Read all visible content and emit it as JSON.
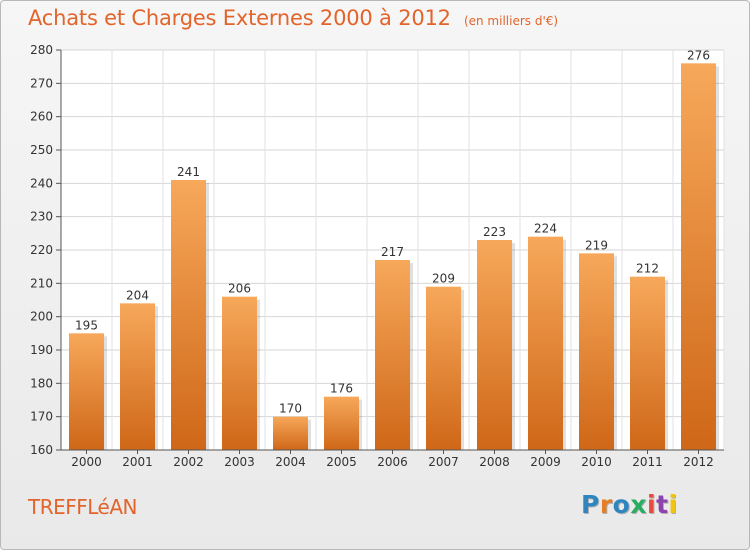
{
  "header": {
    "title": "Achats et Charges Externes 2000 à 2012",
    "subtitle": "(en milliers d'€)"
  },
  "footer": {
    "place": "TREFFLéAN",
    "logo_text": "Proxiti",
    "logo_colors": [
      "#2e86c1",
      "#e67e22",
      "#2e86c1",
      "#27ae60",
      "#e74c3c",
      "#8e44ad",
      "#f1c40f"
    ]
  },
  "chart_data": {
    "type": "bar",
    "categories": [
      "2000",
      "2001",
      "2002",
      "2003",
      "2004",
      "2005",
      "2006",
      "2007",
      "2008",
      "2009",
      "2010",
      "2011",
      "2012"
    ],
    "values": [
      195,
      204,
      241,
      206,
      170,
      176,
      217,
      209,
      223,
      224,
      219,
      212,
      276
    ],
    "ylim": [
      160,
      280
    ],
    "yticks": [
      160,
      170,
      180,
      190,
      200,
      210,
      220,
      230,
      240,
      250,
      260,
      270,
      280
    ],
    "grid": true,
    "bar_color_top": "#f7a85a",
    "bar_color_bottom": "#cf6718"
  }
}
